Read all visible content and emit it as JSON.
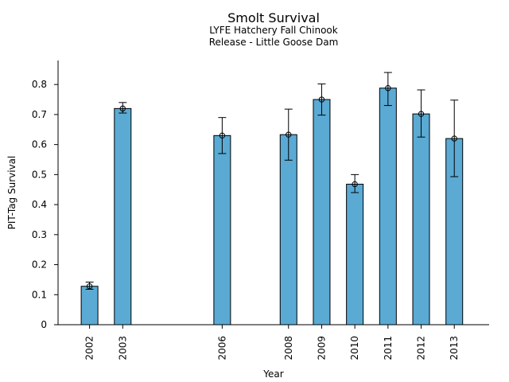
{
  "chart_data": {
    "type": "bar",
    "title": "Smolt Survival",
    "subtitle_lines": [
      "LYFE Hatchery Fall Chinook",
      "Release - Little Goose Dam"
    ],
    "xlabel": "Year",
    "ylabel": "PIT-Tag Survival",
    "ylim": [
      0,
      0.88
    ],
    "xlim": [
      2001.05,
      2014.05
    ],
    "yticks": [
      0,
      0.1,
      0.2,
      0.3,
      0.4,
      0.5,
      0.6,
      0.7,
      0.8
    ],
    "ytick_labels": [
      "0",
      "0.1",
      "0.2",
      "0.3",
      "0.4",
      "0.5",
      "0.6",
      "0.7",
      "0.8"
    ],
    "categories": [
      "2002",
      "2003",
      "2006",
      "2008",
      "2009",
      "2010",
      "2011",
      "2012",
      "2013"
    ],
    "x": [
      2002,
      2003,
      2006,
      2008,
      2009,
      2010,
      2011,
      2012,
      2013
    ],
    "values": [
      0.128,
      0.72,
      0.63,
      0.633,
      0.75,
      0.468,
      0.788,
      0.702,
      0.62
    ],
    "err_low": [
      0.118,
      0.705,
      0.57,
      0.548,
      0.698,
      0.44,
      0.73,
      0.625,
      0.493
    ],
    "err_high": [
      0.142,
      0.74,
      0.69,
      0.718,
      0.802,
      0.5,
      0.84,
      0.782,
      0.748
    ],
    "bar_color": "#5aaad4",
    "edge_color": "#000000",
    "grid": false
  }
}
